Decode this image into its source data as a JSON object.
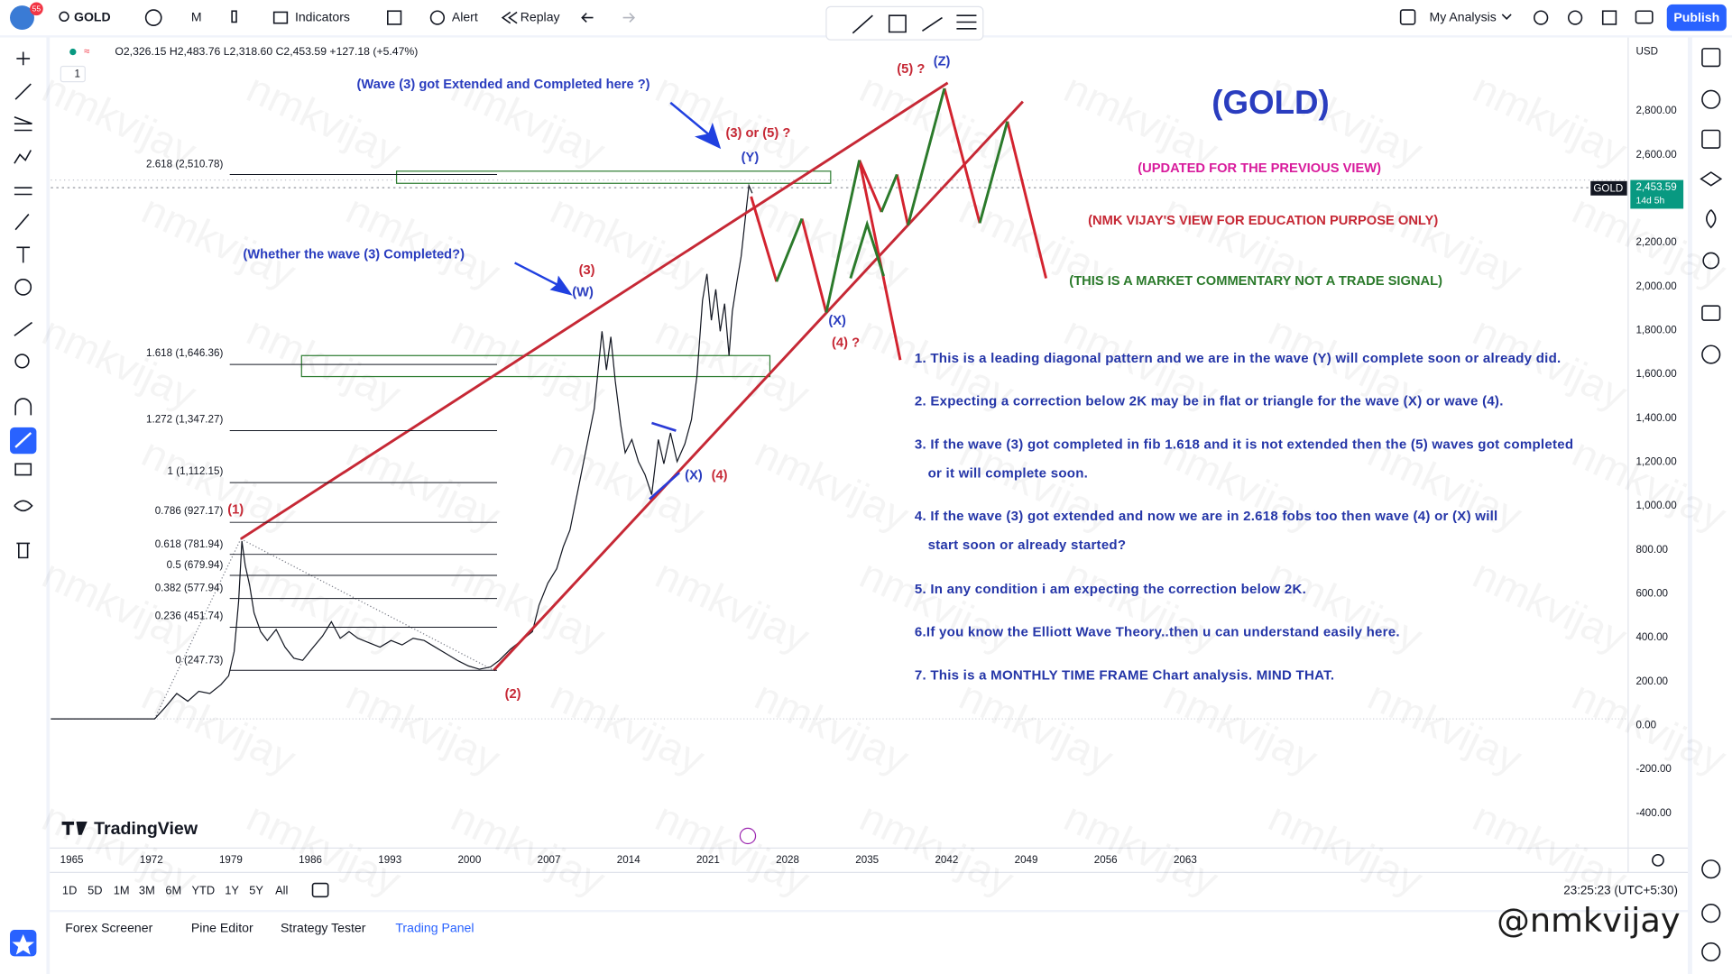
{
  "toolbar": {
    "badge": "55",
    "symbol": "GOLD",
    "interval": "M",
    "indicators": "Indicators",
    "alert": "Alert",
    "replay": "Replay",
    "layout": "My Analysis",
    "publish": "Publish"
  },
  "legend": {
    "ohlc": "O2,326.15 H2,483.76 L2,318.60 C2,453.59 +127.18 (+5.47%)",
    "count": "1"
  },
  "annotations": [
    "(Wave (3) got Extended and Completed here ?)",
    "(Whether the wave (3) Completed?)",
    "(3) or (5) ?",
    "(Y)",
    "(3)",
    "(W)",
    "(1)",
    "(2)",
    "(X)",
    "(4)",
    "(X)",
    "(4) ?",
    "(5) ?",
    "(Z)"
  ],
  "fib_levels": [
    "2.618 (2,510.78)",
    "1.618 (1,646.36)",
    "1.272 (1,347.27)",
    "1 (1,112.15)",
    "0.786 (927.17)",
    "0.618 (781.94)",
    "0.5 (679.94)",
    "0.382 (577.94)",
    "0.236 (451.74)",
    "0 (247.73)"
  ],
  "title": "(GOLD)",
  "notices": [
    "(UPDATED FOR THE PREVIOUS VIEW)",
    "(NMK VIJAY'S VIEW FOR EDUCATION PURPOSE ONLY)",
    "(THIS IS A MARKET COMMENTARY NOT A TRADE SIGNAL)"
  ],
  "notes": [
    [
      "1. This is a leading diagonal pattern and we are in the wave (Y) will complete soon or already did."
    ],
    [
      "2. Expecting a correction below 2K may be in flat or triangle for the wave (X) or wave (4)."
    ],
    [
      "3. If the wave (3) got completed in fib 1.618 and it is not extended then the (5) waves got  completed",
      "or it will complete soon."
    ],
    [
      "4. If the wave (3) got extended and now we are in 2.618 fobs too then wave (4) or (X) will",
      "start soon or already started?"
    ],
    [
      "5. In any condition i am expecting the correction below 2K."
    ],
    [
      "6.If you know the Elliott Wave Theory..then u can understand easily here."
    ],
    [
      "7. This is a MONTHLY TIME FRAME Chart analysis. MIND THAT."
    ]
  ],
  "price_axis": {
    "currency": "USD",
    "labels": [
      "2,800.00",
      "2,600.00",
      "2,200.00",
      "2,000.00",
      "1,800.00",
      "1,600.00",
      "1,400.00",
      "1,200.00",
      "1,000.00",
      "800.00",
      "600.00",
      "400.00",
      "200.00",
      "0.00",
      "-200.00",
      "-400.00"
    ],
    "symbol_tag": "GOLD",
    "price_tag": "2,453.59",
    "countdown": "14d 5h"
  },
  "time_axis": {
    "labels": [
      "1965",
      "1972",
      "1979",
      "1986",
      "1993",
      "2000",
      "2007",
      "2014",
      "2021",
      "2028",
      "2035",
      "2042",
      "2049",
      "2056",
      "2063"
    ]
  },
  "timeframes": [
    "1D",
    "5D",
    "1M",
    "3M",
    "6M",
    "YTD",
    "1Y",
    "5Y",
    "All"
  ],
  "clock": "23:25:23 (UTC+5:30)",
  "tabs": [
    "Forex Screener",
    "Pine Editor",
    "Strategy Tester",
    "Trading Panel"
  ],
  "logo": "TradingView",
  "watermark": "nmkvijay",
  "signature": "@nmkvijay"
}
